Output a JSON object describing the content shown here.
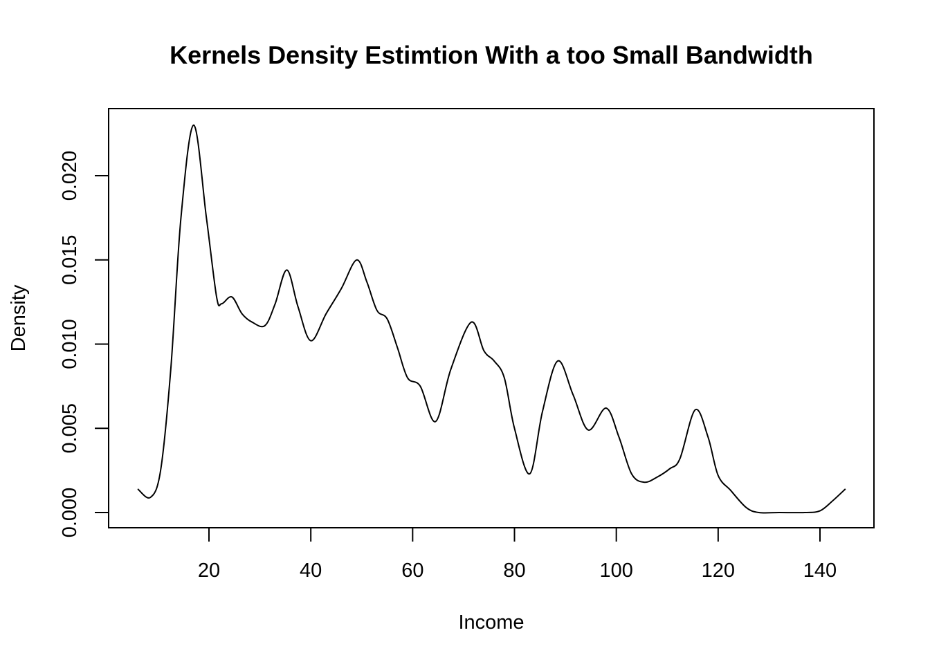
{
  "chart_data": {
    "type": "line",
    "title": "Kernels Density Estimtion With a too Small Bandwidth",
    "xlabel": "Income",
    "ylabel": "Density",
    "xlim": [
      6,
      145
    ],
    "ylim": [
      0,
      0.023
    ],
    "x_ticks": [
      20,
      40,
      60,
      80,
      100,
      120,
      140
    ],
    "x_tick_labels": [
      "20",
      "40",
      "60",
      "80",
      "100",
      "120",
      "140"
    ],
    "y_ticks": [
      0.0,
      0.005,
      0.01,
      0.015,
      0.02
    ],
    "y_tick_labels": [
      "0.000",
      "0.005",
      "0.010",
      "0.015",
      "0.020"
    ],
    "grid": false,
    "series": [
      {
        "color": "#000000",
        "x": [
          6,
          8.5,
          10.5,
          12.5,
          14.5,
          17,
          19.5,
          21.5,
          22.5,
          24.5,
          26.5,
          28.5,
          31,
          33,
          35.3,
          37.5,
          40,
          43,
          46,
          49,
          51,
          53,
          55,
          57,
          59,
          61.5,
          64.5,
          67.5,
          71.5,
          74,
          76,
          78,
          80,
          83,
          85.5,
          88.5,
          91.5,
          94.5,
          98,
          100.5,
          103,
          105.5,
          108,
          110.5,
          112.5,
          115.5,
          118,
          120,
          122.5,
          125.5,
          128,
          132,
          137,
          140,
          142.5,
          145
        ],
        "y": [
          0.0014,
          0.0009,
          0.0025,
          0.0085,
          0.0175,
          0.023,
          0.0175,
          0.0128,
          0.0124,
          0.0128,
          0.0118,
          0.0113,
          0.0111,
          0.0124,
          0.0144,
          0.0122,
          0.0102,
          0.0118,
          0.0133,
          0.015,
          0.0137,
          0.012,
          0.0115,
          0.0098,
          0.008,
          0.0075,
          0.0054,
          0.0085,
          0.0113,
          0.0096,
          0.009,
          0.008,
          0.005,
          0.0023,
          0.006,
          0.009,
          0.007,
          0.0049,
          0.0062,
          0.0045,
          0.0023,
          0.0018,
          0.0021,
          0.0026,
          0.0032,
          0.0061,
          0.0045,
          0.0022,
          0.0013,
          0.0003,
          0.0,
          0.0,
          0.0,
          0.0001,
          0.0007,
          0.0014
        ]
      }
    ]
  }
}
